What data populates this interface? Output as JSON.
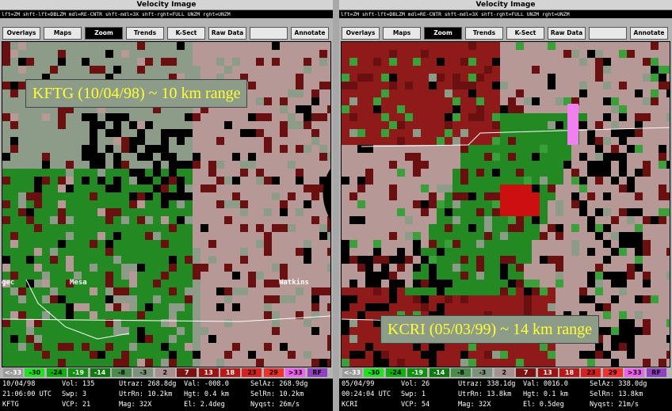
{
  "windows": [
    {
      "title": "Velocity Image",
      "hint": "lft=ZM shft-lft=DBLZM mdl=RE-CNTR shft-mdl=3X shft-rght=FULL UNZM rght=UNZM",
      "buttons": [
        "Overlays",
        "Maps",
        "Zoom",
        "Trends",
        "K-Sect",
        "Raw Data",
        "Annotate"
      ],
      "caption": "KFTG (10/04/98) ~ 10 km range",
      "places": [
        "gec",
        "Mesa",
        "Watkins"
      ],
      "legend": [
        "<-33",
        "-30",
        "-24",
        "-19",
        "-14",
        "-8",
        "-3",
        "2",
        "7",
        "13",
        "18",
        "23",
        "29",
        ">33",
        "RF"
      ],
      "status": [
        [
          "10/04/98",
          "Vol: 135",
          "Utraz: 268.8dg",
          "Val: -008.0",
          "SelAz: 268.9dg"
        ],
        [
          "21:06:00 UTC",
          "Swp: 3",
          "UtrRn: 10.2km",
          "Hgt: 0.4 km",
          "SelRn: 10.2km"
        ],
        [
          "KFTG",
          "VCP: 21",
          "Mag: 32X",
          "El: 2.4deg",
          "Nyqst: 26m/s"
        ]
      ]
    },
    {
      "title": "Velocity Image",
      "hint": "lft=ZM shft-lft=DBLZM mdl=RE-CNTR shft-mdl=3X shft-rght=FULL UNZM rght=UNZM",
      "buttons": [
        "Overlays",
        "Maps",
        "Zoom",
        "Trends",
        "K-Sect",
        "Raw Data",
        "Annotate"
      ],
      "caption": "KCRI (05/03/99) ~ 14 km range",
      "places": [],
      "legend": [
        "<-33",
        "-30",
        "-24",
        "-19",
        "-14",
        "-8",
        "-3",
        "2",
        "7",
        "13",
        "18",
        "23",
        "29",
        ">33",
        "RF"
      ],
      "status": [
        [
          "05/04/99",
          "Vol: 26",
          "Utraz: 338.1dg",
          "Val: 0016.0",
          "SelAz: 338.0dg"
        ],
        [
          "00:24:04 UTC",
          "Swp: 1",
          "UtrRn: 13.8km",
          "Hgt: 0.1 km",
          "SelRn: 13.8km"
        ],
        [
          "KCRI",
          "VCP: 54",
          "Mag: 32X",
          "El: 0.5deg",
          "Nyqst: 21m/s"
        ]
      ]
    }
  ]
}
